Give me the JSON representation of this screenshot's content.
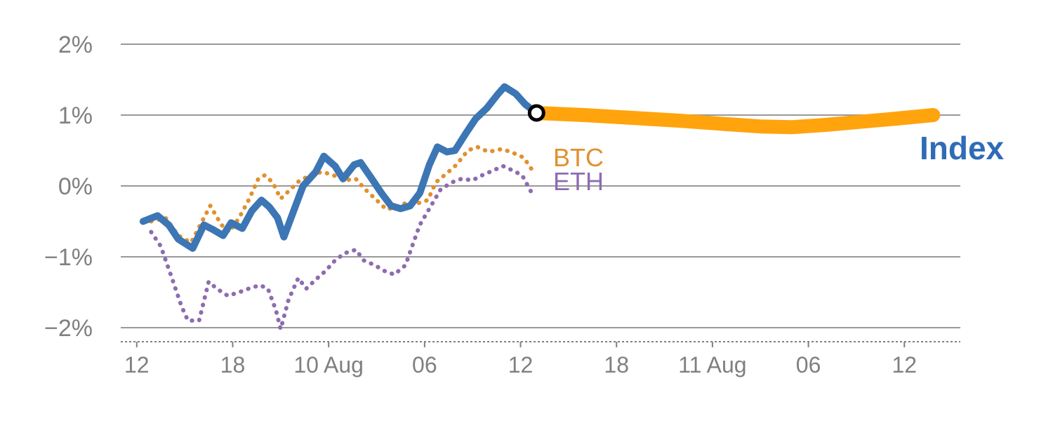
{
  "labels": {
    "btc": "BTC",
    "eth": "ETH",
    "index": "Index"
  },
  "colors": {
    "index": "#3c76b4",
    "index_label": "#2e6cb7",
    "btc": "#e0912f",
    "eth": "#8d6cb0",
    "projection": "#ffa40d",
    "grid": "#999999",
    "axis_text": "#808080",
    "marker_stroke": "#000000",
    "marker_fill": "#ffffff"
  },
  "chart_data": {
    "type": "line",
    "title": "",
    "xlabel": "",
    "ylabel": "",
    "x_axis": {
      "unit": "hours (9 Aug 12:00 through 11 Aug ~13:00)",
      "range": [
        11,
        63.5
      ],
      "ticks": [
        {
          "value": 12,
          "label": "12"
        },
        {
          "value": 18,
          "label": "18"
        },
        {
          "value": 24,
          "label": "10 Aug"
        },
        {
          "value": 30,
          "label": "06"
        },
        {
          "value": 36,
          "label": "12"
        },
        {
          "value": 42,
          "label": "18"
        },
        {
          "value": 48,
          "label": "11 Aug"
        },
        {
          "value": 54,
          "label": "06"
        },
        {
          "value": 60,
          "label": "12"
        }
      ]
    },
    "y_axis": {
      "unit": "percent return",
      "range": [
        -2.2,
        2.2
      ],
      "ticks": [
        {
          "value": 2,
          "label": "2%"
        },
        {
          "value": 1,
          "label": "1%"
        },
        {
          "value": 0,
          "label": "0%"
        },
        {
          "value": -1,
          "label": "−1%"
        },
        {
          "value": -2,
          "label": "−2%"
        }
      ]
    },
    "series": [
      {
        "name": "ETH",
        "color_key": "eth",
        "style": "dotted",
        "width": 6,
        "points": [
          [
            12.9,
            -0.65
          ],
          [
            13.5,
            -0.85
          ],
          [
            14.2,
            -1.3
          ],
          [
            14.8,
            -1.7
          ],
          [
            15.2,
            -1.9
          ],
          [
            15.9,
            -1.9
          ],
          [
            16.5,
            -1.35
          ],
          [
            17.0,
            -1.45
          ],
          [
            17.7,
            -1.55
          ],
          [
            18.4,
            -1.5
          ],
          [
            19.0,
            -1.45
          ],
          [
            19.7,
            -1.4
          ],
          [
            20.2,
            -1.45
          ],
          [
            20.7,
            -1.75
          ],
          [
            21.0,
            -2.02
          ],
          [
            21.5,
            -1.6
          ],
          [
            22.1,
            -1.3
          ],
          [
            22.6,
            -1.45
          ],
          [
            23.2,
            -1.32
          ],
          [
            23.8,
            -1.2
          ],
          [
            24.4,
            -1.05
          ],
          [
            25.0,
            -0.95
          ],
          [
            25.7,
            -0.9
          ],
          [
            26.2,
            -1.05
          ],
          [
            26.9,
            -1.12
          ],
          [
            27.5,
            -1.2
          ],
          [
            28.1,
            -1.25
          ],
          [
            28.8,
            -1.12
          ],
          [
            29.3,
            -0.8
          ],
          [
            29.7,
            -0.55
          ],
          [
            30.4,
            -0.28
          ],
          [
            31.0,
            -0.05
          ],
          [
            31.7,
            0.05
          ],
          [
            32.3,
            0.1
          ],
          [
            33.0,
            0.08
          ],
          [
            33.6,
            0.15
          ],
          [
            34.3,
            0.22
          ],
          [
            34.9,
            0.28
          ],
          [
            35.5,
            0.22
          ],
          [
            36.1,
            0.15
          ],
          [
            36.7,
            -0.1
          ]
        ]
      },
      {
        "name": "BTC",
        "color_key": "btc",
        "style": "dotted",
        "width": 6,
        "points": [
          [
            12.9,
            -0.5
          ],
          [
            13.8,
            -0.45
          ],
          [
            14.6,
            -0.7
          ],
          [
            15.4,
            -0.8
          ],
          [
            16.2,
            -0.45
          ],
          [
            16.6,
            -0.28
          ],
          [
            17.3,
            -0.55
          ],
          [
            17.8,
            -0.65
          ],
          [
            18.4,
            -0.45
          ],
          [
            19.0,
            -0.2
          ],
          [
            19.6,
            0.1
          ],
          [
            20.0,
            0.15
          ],
          [
            20.5,
            0.05
          ],
          [
            21.0,
            -0.18
          ],
          [
            21.6,
            -0.05
          ],
          [
            22.2,
            0.08
          ],
          [
            22.9,
            0.15
          ],
          [
            23.6,
            0.2
          ],
          [
            24.3,
            0.15
          ],
          [
            25.0,
            0.08
          ],
          [
            25.7,
            0.1
          ],
          [
            26.3,
            -0.05
          ],
          [
            27.0,
            -0.2
          ],
          [
            27.6,
            -0.33
          ],
          [
            28.3,
            -0.3
          ],
          [
            29.0,
            -0.22
          ],
          [
            29.5,
            -0.25
          ],
          [
            30.2,
            -0.2
          ],
          [
            30.7,
            0.05
          ],
          [
            31.4,
            0.18
          ],
          [
            32.0,
            0.3
          ],
          [
            32.7,
            0.5
          ],
          [
            33.3,
            0.55
          ],
          [
            34.0,
            0.48
          ],
          [
            34.8,
            0.52
          ],
          [
            35.4,
            0.48
          ],
          [
            36.2,
            0.4
          ],
          [
            36.8,
            0.2
          ]
        ]
      },
      {
        "name": "Index",
        "color_key": "index",
        "style": "solid",
        "width": 10,
        "points": [
          [
            12.4,
            -0.5
          ],
          [
            13.3,
            -0.42
          ],
          [
            14.0,
            -0.55
          ],
          [
            14.6,
            -0.75
          ],
          [
            15.5,
            -0.88
          ],
          [
            16.2,
            -0.55
          ],
          [
            16.8,
            -0.62
          ],
          [
            17.4,
            -0.7
          ],
          [
            17.9,
            -0.52
          ],
          [
            18.6,
            -0.6
          ],
          [
            19.2,
            -0.35
          ],
          [
            19.8,
            -0.2
          ],
          [
            20.3,
            -0.3
          ],
          [
            20.8,
            -0.45
          ],
          [
            21.2,
            -0.72
          ],
          [
            21.9,
            -0.3
          ],
          [
            22.4,
            0.0
          ],
          [
            23.2,
            0.2
          ],
          [
            23.7,
            0.42
          ],
          [
            24.4,
            0.28
          ],
          [
            24.9,
            0.1
          ],
          [
            25.6,
            0.3
          ],
          [
            26.0,
            0.33
          ],
          [
            26.7,
            0.1
          ],
          [
            27.3,
            -0.1
          ],
          [
            27.9,
            -0.28
          ],
          [
            28.5,
            -0.32
          ],
          [
            29.1,
            -0.28
          ],
          [
            29.7,
            -0.1
          ],
          [
            30.3,
            0.3
          ],
          [
            30.8,
            0.55
          ],
          [
            31.4,
            0.48
          ],
          [
            31.9,
            0.5
          ],
          [
            32.6,
            0.75
          ],
          [
            33.2,
            0.95
          ],
          [
            33.9,
            1.1
          ],
          [
            34.6,
            1.3
          ],
          [
            35.0,
            1.4
          ],
          [
            35.7,
            1.3
          ],
          [
            36.3,
            1.15
          ],
          [
            37.0,
            1.03
          ]
        ]
      },
      {
        "name": "Index projection",
        "color_key": "projection",
        "style": "solid",
        "width": 20,
        "points": [
          [
            37.0,
            1.03
          ],
          [
            40,
            1.0
          ],
          [
            43,
            0.96
          ],
          [
            46,
            0.92
          ],
          [
            49,
            0.87
          ],
          [
            51,
            0.84
          ],
          [
            53,
            0.83
          ],
          [
            55,
            0.86
          ],
          [
            57,
            0.9
          ],
          [
            59,
            0.94
          ],
          [
            61.8,
            1.0
          ]
        ]
      }
    ],
    "marker": {
      "x": 37.0,
      "y": 1.03
    },
    "grid": "horizontal-only",
    "legend_position": "inline-annotations"
  }
}
